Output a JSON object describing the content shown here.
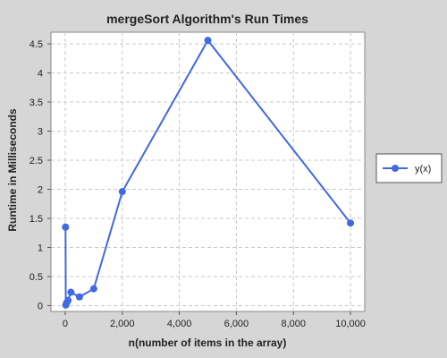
{
  "chart_data": {
    "type": "line",
    "title": "mergeSort Algorithm's Run Times",
    "xlabel": "n(number of items in the array)",
    "ylabel": "Runtime in Milliseconds",
    "xlim": [
      -500,
      10500
    ],
    "ylim": [
      -0.1,
      4.7
    ],
    "xticks": [
      0,
      2000,
      4000,
      6000,
      8000,
      10000
    ],
    "xtick_labels": [
      "0",
      "2,000",
      "4,000",
      "6,000",
      "8,000",
      "10,000"
    ],
    "yticks": [
      0,
      0.5,
      1,
      1.5,
      2,
      2.5,
      3,
      3.5,
      4,
      4.5
    ],
    "ytick_labels": [
      "0",
      "0.5",
      "1",
      "1.5",
      "2",
      "2.5",
      "3",
      "3.5",
      "4",
      "4.5"
    ],
    "grid": true,
    "legend_position": "right",
    "series": [
      {
        "name": "y(x)",
        "color": "#4169e1",
        "x": [
          10,
          20,
          50,
          100,
          200,
          500,
          1000,
          2000,
          5000,
          10000
        ],
        "y": [
          1.35,
          0.01,
          0.05,
          0.09,
          0.23,
          0.15,
          0.29,
          1.96,
          4.56,
          1.42
        ]
      }
    ]
  }
}
